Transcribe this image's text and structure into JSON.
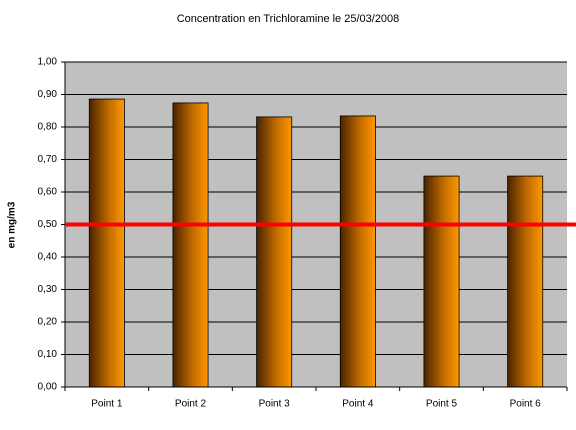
{
  "chart_data": {
    "type": "bar",
    "title": "Concentration  en Trichloramine le 25/03/2008",
    "y_label": "en mg/m3",
    "categories": [
      "Point 1",
      "Point 2",
      "Point 3",
      "Point 4",
      "Point 5",
      "Point 6"
    ],
    "values": [
      0.886,
      0.874,
      0.831,
      0.834,
      0.649,
      0.649
    ],
    "color": "#ff9900",
    "ylim": [
      0,
      1
    ],
    "yticks": [
      {
        "value": 0,
        "label": "0,00"
      },
      {
        "value": 0.1,
        "label": "0,10"
      },
      {
        "value": 0.2,
        "label": "0,20"
      },
      {
        "value": 0.3,
        "label": "0,30"
      },
      {
        "value": 0.4,
        "label": "0,40"
      },
      {
        "value": 0.5,
        "label": "0,50"
      },
      {
        "value": 0.6,
        "label": "0,60"
      },
      {
        "value": 0.7,
        "label": "0,70"
      },
      {
        "value": 0.8,
        "label": "0,80"
      },
      {
        "value": 0.9,
        "label": "0,90"
      },
      {
        "value": 1,
        "label": "1,00"
      }
    ],
    "grid": true,
    "threshold": {
      "value": 0.5,
      "color": "#ff0000"
    }
  }
}
